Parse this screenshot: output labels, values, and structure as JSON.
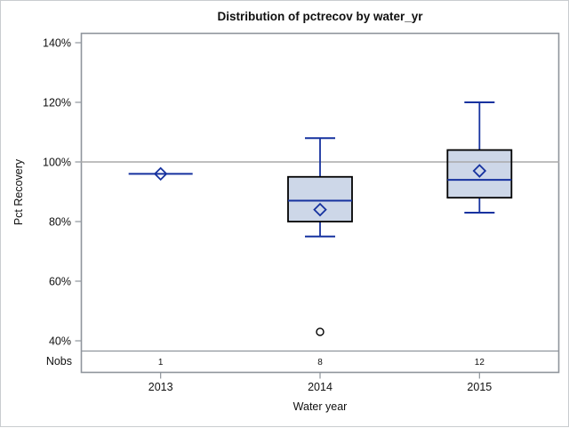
{
  "figure": {
    "title": "Distribution of pctrecov by water_yr"
  },
  "chart_data": {
    "type": "box",
    "title": "Distribution of pctrecov by water_yr",
    "xlabel": "Water year",
    "ylabel": "Pct Recovery",
    "categories": [
      "2013",
      "2014",
      "2015"
    ],
    "nobs_label": "Nobs",
    "y_ticks": [
      140,
      120,
      100,
      80,
      60,
      40
    ],
    "y_tick_suffix": "%",
    "ylim": [
      37,
      143
    ],
    "refline": 100,
    "grid": "off",
    "legend": "none",
    "series": [
      {
        "category": "2013",
        "nobs": 1,
        "min": 96,
        "q1": 96,
        "median": 96,
        "q3": 96,
        "max": 96,
        "mean": 96,
        "outliers": []
      },
      {
        "category": "2014",
        "nobs": 8,
        "min": 75,
        "q1": 80,
        "median": 87,
        "q3": 95,
        "max": 108,
        "mean": 84,
        "outliers": [
          43
        ]
      },
      {
        "category": "2015",
        "nobs": 12,
        "min": 83,
        "q1": 88,
        "median": 94,
        "q3": 104,
        "max": 120,
        "mean": 97,
        "outliers": []
      }
    ],
    "colors": {
      "box_fill": "#cdd7e8",
      "box_border": "#000000",
      "line_blue": "#16329f",
      "frame_gray": "#8f959c",
      "refline_gray": "#aaaaaa",
      "outlier_stroke": "#000000",
      "text": "#101010",
      "outer_border": "#c9cccf",
      "background": "#ffffff"
    }
  }
}
